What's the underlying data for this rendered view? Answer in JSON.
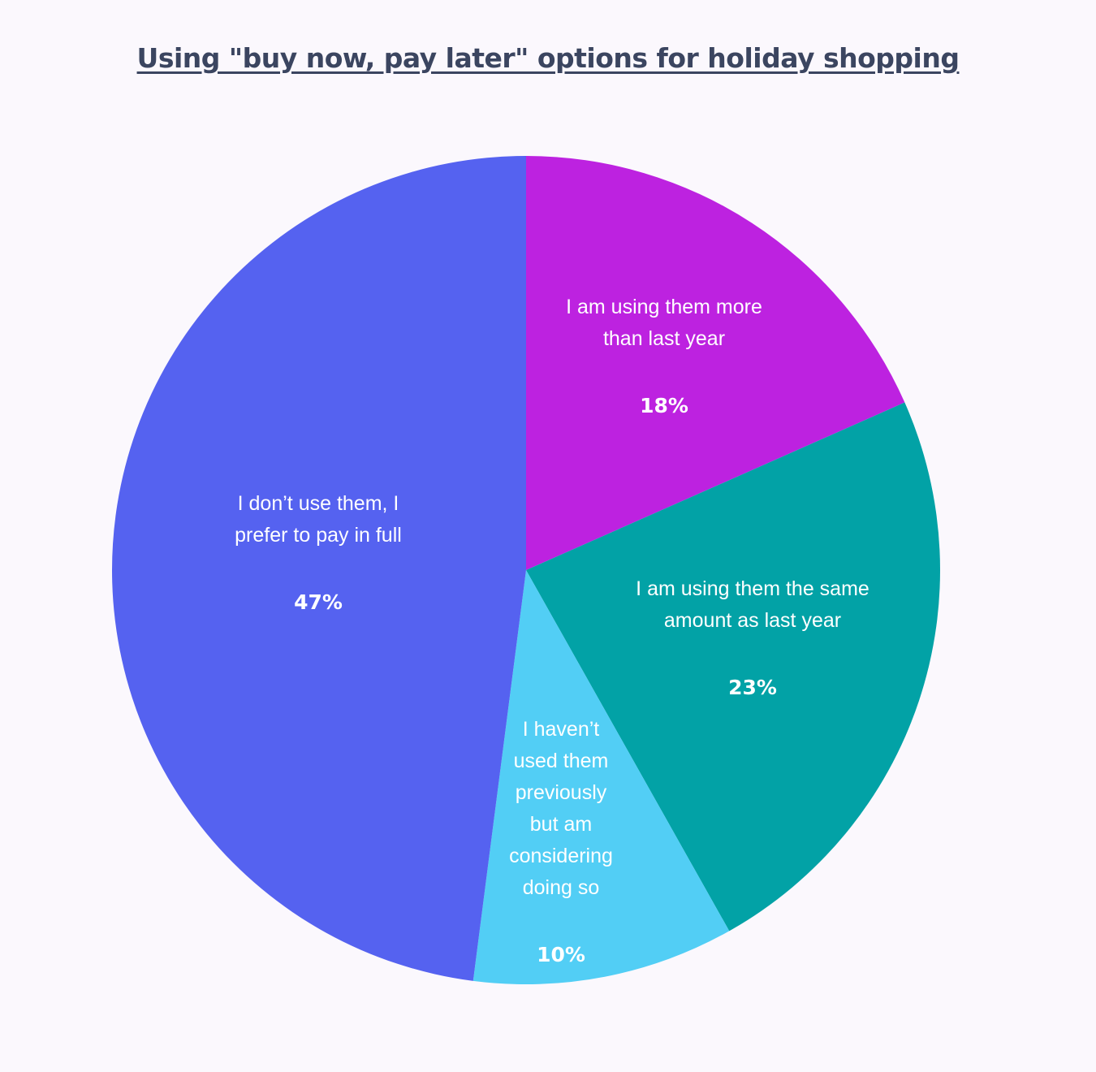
{
  "chart_data": {
    "type": "pie",
    "title": "Using \"buy now, pay later\" options for holiday shopping",
    "slices": [
      {
        "label": "I am using them more than last year",
        "label_lines": [
          "I am using them more",
          "than last year"
        ],
        "value": 18,
        "value_label": "18%",
        "color": "#bd22e0"
      },
      {
        "label": "I am using them the same amount as last year",
        "label_lines": [
          "I am using them the same",
          "amount as last year"
        ],
        "value": 23,
        "value_label": "23%",
        "color": "#02a2a6"
      },
      {
        "label": "I haven’t used them previously but am considering doing so",
        "label_lines": [
          "I haven’t",
          "used them",
          "previously",
          "but am",
          "considering",
          "doing so"
        ],
        "value": 10,
        "value_label": "10%",
        "color": "#52cef5"
      },
      {
        "label": "I don’t use them, I prefer to pay in full",
        "label_lines": [
          "I don’t use them, I",
          "prefer to pay in full"
        ],
        "value": 47,
        "value_label": "47%",
        "color": "#5562f0"
      }
    ]
  }
}
